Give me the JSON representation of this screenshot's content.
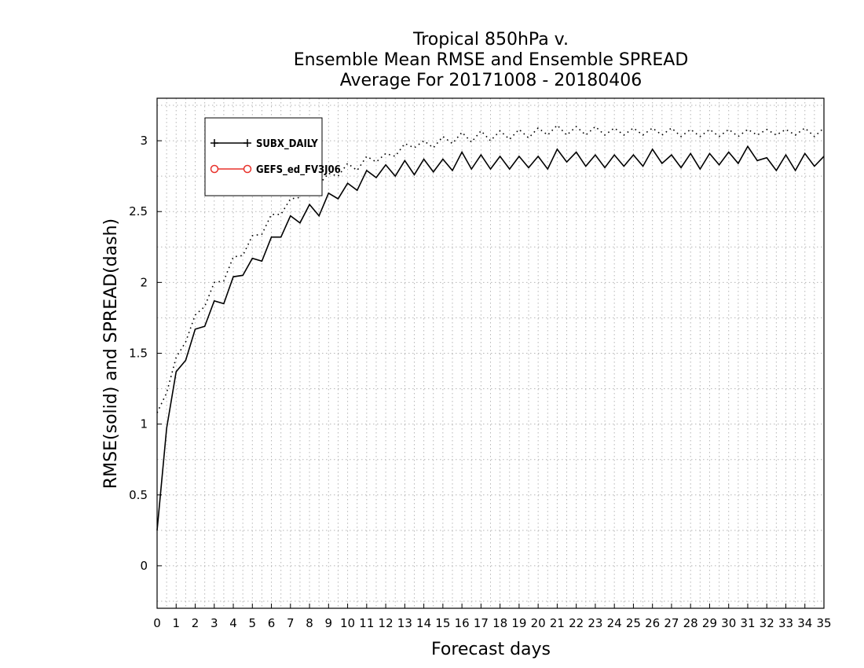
{
  "chart_data": {
    "type": "line",
    "title": [
      "Tropical 850hPa v.",
      "Ensemble Mean RMSE and Ensemble SPREAD",
      "Average For 20171008 - 20180406"
    ],
    "xlabel": "Forecast days",
    "ylabel": "RMSE(solid) and SPREAD(dash)",
    "xlim": [
      0,
      35
    ],
    "ylim": [
      -0.3,
      3.3
    ],
    "xticks": [
      0,
      1,
      2,
      3,
      4,
      5,
      6,
      7,
      8,
      9,
      10,
      11,
      12,
      13,
      14,
      15,
      16,
      17,
      18,
      19,
      20,
      21,
      22,
      23,
      24,
      25,
      26,
      27,
      28,
      29,
      30,
      31,
      32,
      33,
      34,
      35
    ],
    "yticks": [
      0,
      0.5,
      1,
      1.5,
      2,
      2.5,
      3
    ],
    "ytick_labels": [
      "0",
      "0.5",
      "1",
      "1.5",
      "2",
      "2.5",
      "3"
    ],
    "grid": true,
    "legend_placement": "top-left",
    "legend": [
      {
        "label": "SUBX_DAILY",
        "color": "#000000",
        "marker": "plus"
      },
      {
        "label": "GEFS_ed_FV3J06",
        "color": "#e8322b",
        "marker": "circle"
      }
    ],
    "x": [
      0,
      0.5,
      1,
      1.5,
      2,
      2.5,
      3,
      3.5,
      4,
      4.5,
      5,
      5.5,
      6,
      6.5,
      7,
      7.5,
      8,
      8.5,
      9,
      9.5,
      10,
      10.5,
      11,
      11.5,
      12,
      12.5,
      13,
      13.5,
      14,
      14.5,
      15,
      15.5,
      16,
      16.5,
      17,
      17.5,
      18,
      18.5,
      19,
      19.5,
      20,
      20.5,
      21,
      21.5,
      22,
      22.5,
      23,
      23.5,
      24,
      24.5,
      25,
      25.5,
      26,
      26.5,
      27,
      27.5,
      28,
      28.5,
      29,
      29.5,
      30,
      30.5,
      31,
      31.5,
      32,
      32.5,
      33,
      33.5,
      34,
      34.5,
      35
    ],
    "series": [
      {
        "name": "SUBX_DAILY",
        "style": "solid",
        "color": "#000000",
        "values": [
          0.25,
          0.97,
          1.37,
          1.45,
          1.67,
          1.69,
          1.87,
          1.85,
          2.04,
          2.05,
          2.17,
          2.15,
          2.32,
          2.32,
          2.47,
          2.42,
          2.55,
          2.47,
          2.63,
          2.59,
          2.7,
          2.65,
          2.79,
          2.74,
          2.83,
          2.75,
          2.86,
          2.76,
          2.87,
          2.78,
          2.87,
          2.79,
          2.92,
          2.8,
          2.9,
          2.8,
          2.89,
          2.8,
          2.89,
          2.81,
          2.89,
          2.8,
          2.94,
          2.85,
          2.92,
          2.82,
          2.9,
          2.81,
          2.9,
          2.82,
          2.9,
          2.82,
          2.94,
          2.84,
          2.9,
          2.81,
          2.91,
          2.8,
          2.91,
          2.83,
          2.92,
          2.84,
          2.96,
          2.86,
          2.88,
          2.79,
          2.9,
          2.79,
          2.91,
          2.82,
          2.89
        ]
      },
      {
        "name": "SPREAD",
        "style": "dotted",
        "color": "#000000",
        "values": [
          1.08,
          1.22,
          1.47,
          1.58,
          1.77,
          1.83,
          2.0,
          2.01,
          2.18,
          2.19,
          2.33,
          2.34,
          2.48,
          2.48,
          2.59,
          2.6,
          2.69,
          2.69,
          2.77,
          2.75,
          2.84,
          2.79,
          2.89,
          2.85,
          2.91,
          2.89,
          2.98,
          2.95,
          3.0,
          2.95,
          3.03,
          2.98,
          3.06,
          2.99,
          3.07,
          3.0,
          3.07,
          3.01,
          3.08,
          3.02,
          3.09,
          3.04,
          3.11,
          3.04,
          3.1,
          3.04,
          3.1,
          3.04,
          3.09,
          3.04,
          3.09,
          3.04,
          3.09,
          3.04,
          3.09,
          3.03,
          3.08,
          3.03,
          3.08,
          3.03,
          3.08,
          3.03,
          3.08,
          3.04,
          3.08,
          3.04,
          3.08,
          3.04,
          3.09,
          3.03,
          3.09
        ]
      }
    ]
  }
}
